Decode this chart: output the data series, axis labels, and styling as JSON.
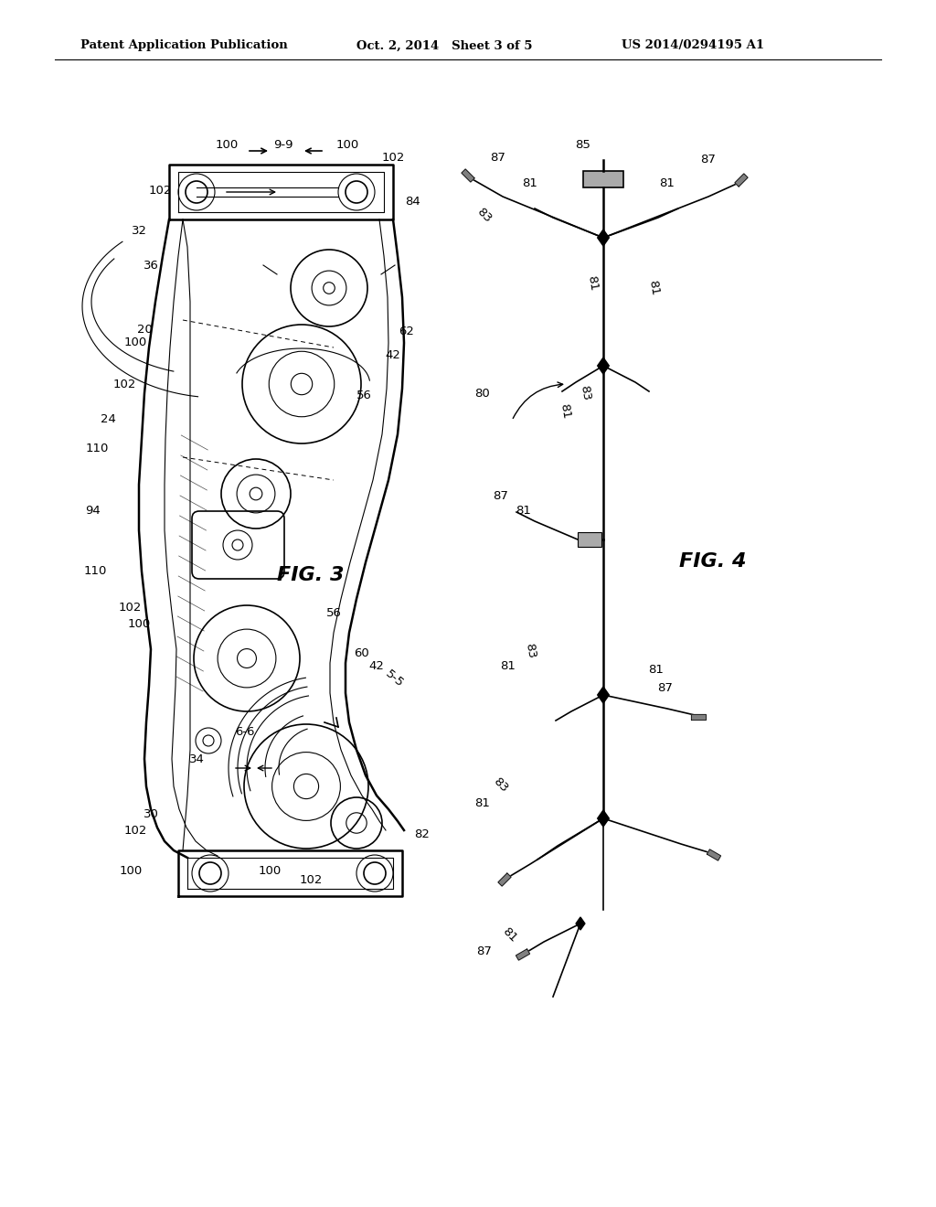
{
  "bg_color": "#ffffff",
  "header_left": "Patent Application Publication",
  "header_mid": "Oct. 2, 2014   Sheet 3 of 5",
  "header_right": "US 2014/0294195 A1"
}
